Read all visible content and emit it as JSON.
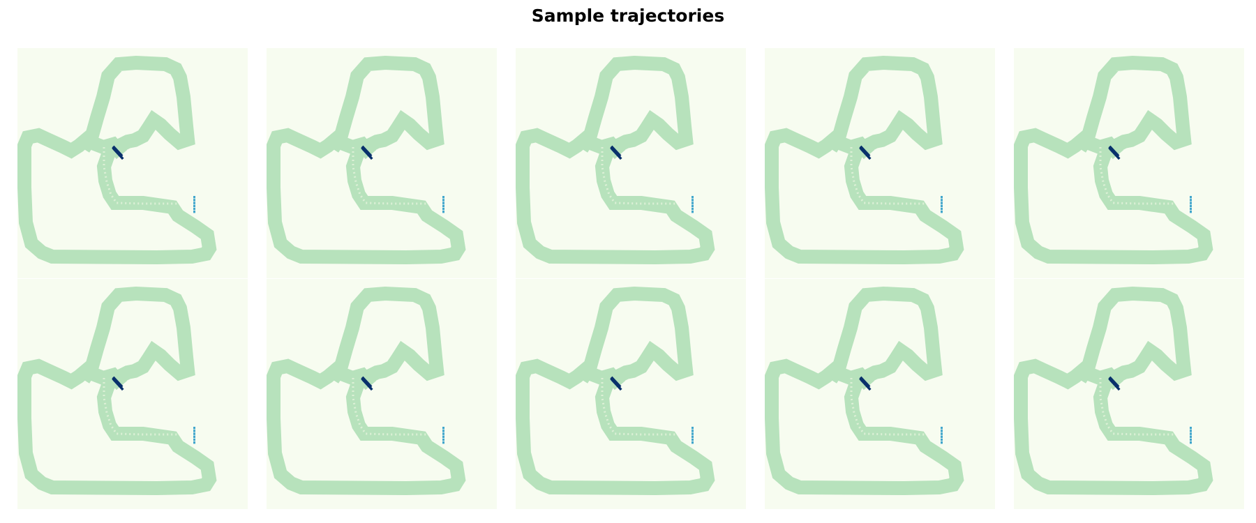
{
  "figure": {
    "title": "Sample trajectories"
  },
  "chart_data": {
    "type": "heatmap",
    "title": "Sample trajectories",
    "layout": {
      "rows": 2,
      "columns": 5
    },
    "axes": "off",
    "colormap": "GnBu",
    "colors": {
      "background": "#f7fcf0",
      "track": "#b7e2bc",
      "start_line": "#08306b",
      "finish_line": "#41a6cc",
      "trajectory_dots": "#dcf0d6"
    },
    "track": {
      "name": "racetrack",
      "start_line": {
        "cells": 6,
        "orientation": "diagonal"
      },
      "finish_line": {
        "cells": 6,
        "orientation": "vertical"
      }
    },
    "panels": [
      {
        "index": 1,
        "row": 1,
        "col": 1
      },
      {
        "index": 2,
        "row": 1,
        "col": 2
      },
      {
        "index": 3,
        "row": 1,
        "col": 3
      },
      {
        "index": 4,
        "row": 1,
        "col": 4
      },
      {
        "index": 5,
        "row": 1,
        "col": 5
      },
      {
        "index": 6,
        "row": 2,
        "col": 1
      },
      {
        "index": 7,
        "row": 2,
        "col": 2
      },
      {
        "index": 8,
        "row": 2,
        "col": 3
      },
      {
        "index": 9,
        "row": 2,
        "col": 4
      },
      {
        "index": 10,
        "row": 2,
        "col": 5
      }
    ]
  }
}
